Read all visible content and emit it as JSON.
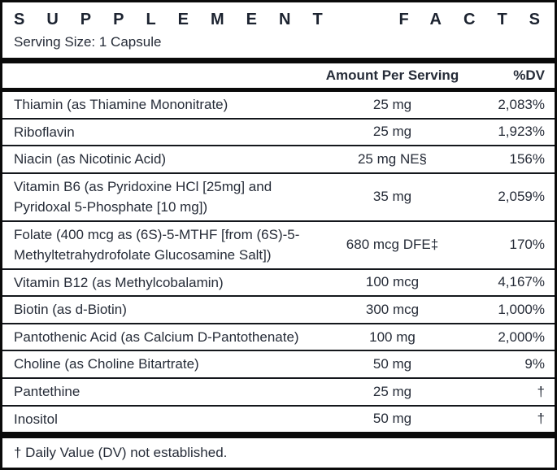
{
  "header": {
    "title_words": [
      "SUPPLEMENT",
      "FACTS"
    ],
    "serving_size": "Serving Size: 1 Capsule"
  },
  "table": {
    "columns": [
      "Amount Per Serving",
      "%DV"
    ],
    "rows": [
      {
        "label": "Thiamin (as Thiamine Mononitrate)",
        "amount": "25 mg",
        "dv": "2,083%"
      },
      {
        "label": "Riboflavin",
        "amount": "25 mg",
        "dv": "1,923%"
      },
      {
        "label": "Niacin (as Nicotinic Acid)",
        "amount": "25 mg NE§",
        "dv": "156%"
      },
      {
        "label": "Vitamin B6 (as Pyridoxine HCl [25mg] and Pyridoxal 5-Phosphate [10 mg])",
        "amount": "35 mg",
        "dv": "2,059%"
      },
      {
        "label": "Folate (400 mcg as (6S)-5-MTHF [from (6S)-5-Methyltetrahydrofolate Glucosamine Salt])",
        "amount": "680 mcg DFE‡",
        "dv": "170%"
      },
      {
        "label": "Vitamin B12 (as Methylcobalamin)",
        "amount": "100 mcg",
        "dv": "4,167%"
      },
      {
        "label": "Biotin (as d-Biotin)",
        "amount": "300 mcg",
        "dv": "1,000%"
      },
      {
        "label": "Pantothenic Acid (as Calcium D-Pantothenate)",
        "amount": "100 mg",
        "dv": "2,000%"
      },
      {
        "label": "Choline (as Choline Bitartrate)",
        "amount": "50 mg",
        "dv": "9%"
      },
      {
        "label": "Pantethine",
        "amount": "25 mg",
        "dv": "†"
      },
      {
        "label": "Inositol",
        "amount": "50 mg",
        "dv": "†"
      }
    ]
  },
  "footnote": {
    "text": "† Daily Value (DV) not established."
  },
  "colors": {
    "text": "#262c38",
    "rule": "#0a0a0a",
    "separator": "#14171c",
    "background": "#ffffff"
  }
}
